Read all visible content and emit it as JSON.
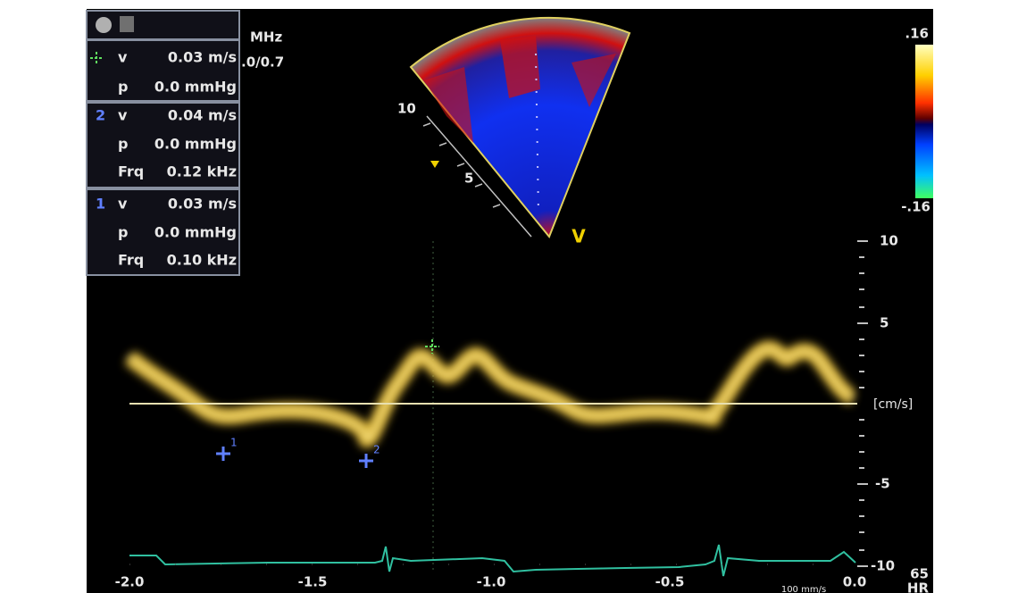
{
  "measurements": [
    {
      "rows": [
        {
          "label": "v",
          "value": "0.03 m/s"
        },
        {
          "label": "p",
          "value": "0.0 mmHg"
        }
      ]
    },
    {
      "marker": "2",
      "rows": [
        {
          "label": "v",
          "value": "0.04 m/s"
        },
        {
          "label": "p",
          "value": "0.0 mmHg"
        },
        {
          "label": "Frq",
          "value": "0.12 kHz"
        }
      ]
    },
    {
      "marker": "1",
      "rows": [
        {
          "label": "v",
          "value": "0.03 m/s"
        },
        {
          "label": "p",
          "value": "0.0 mmHg"
        },
        {
          "label": "Frq",
          "value": "0.10 kHz"
        }
      ]
    }
  ],
  "probe": {
    "frequency_unit": "MHz",
    "setting": ".0/0.7"
  },
  "color_scale": {
    "max": ".16",
    "min": "-.16"
  },
  "sector": {
    "depth_labels": [
      "10",
      "5"
    ],
    "view_label": "V"
  },
  "velocity_axis": {
    "ticks": [
      "10",
      "5",
      "-5",
      "-10"
    ],
    "unit": "[cm/s]"
  },
  "time_axis": {
    "ticks": [
      "-2.0",
      "-1.5",
      "-1.0",
      "-0.5",
      "0.0"
    ]
  },
  "sweep_speed": "100 mm/s",
  "heart_rate": {
    "value": "65",
    "label": "HR"
  },
  "markers": {
    "labels": [
      "1",
      "2"
    ]
  }
}
